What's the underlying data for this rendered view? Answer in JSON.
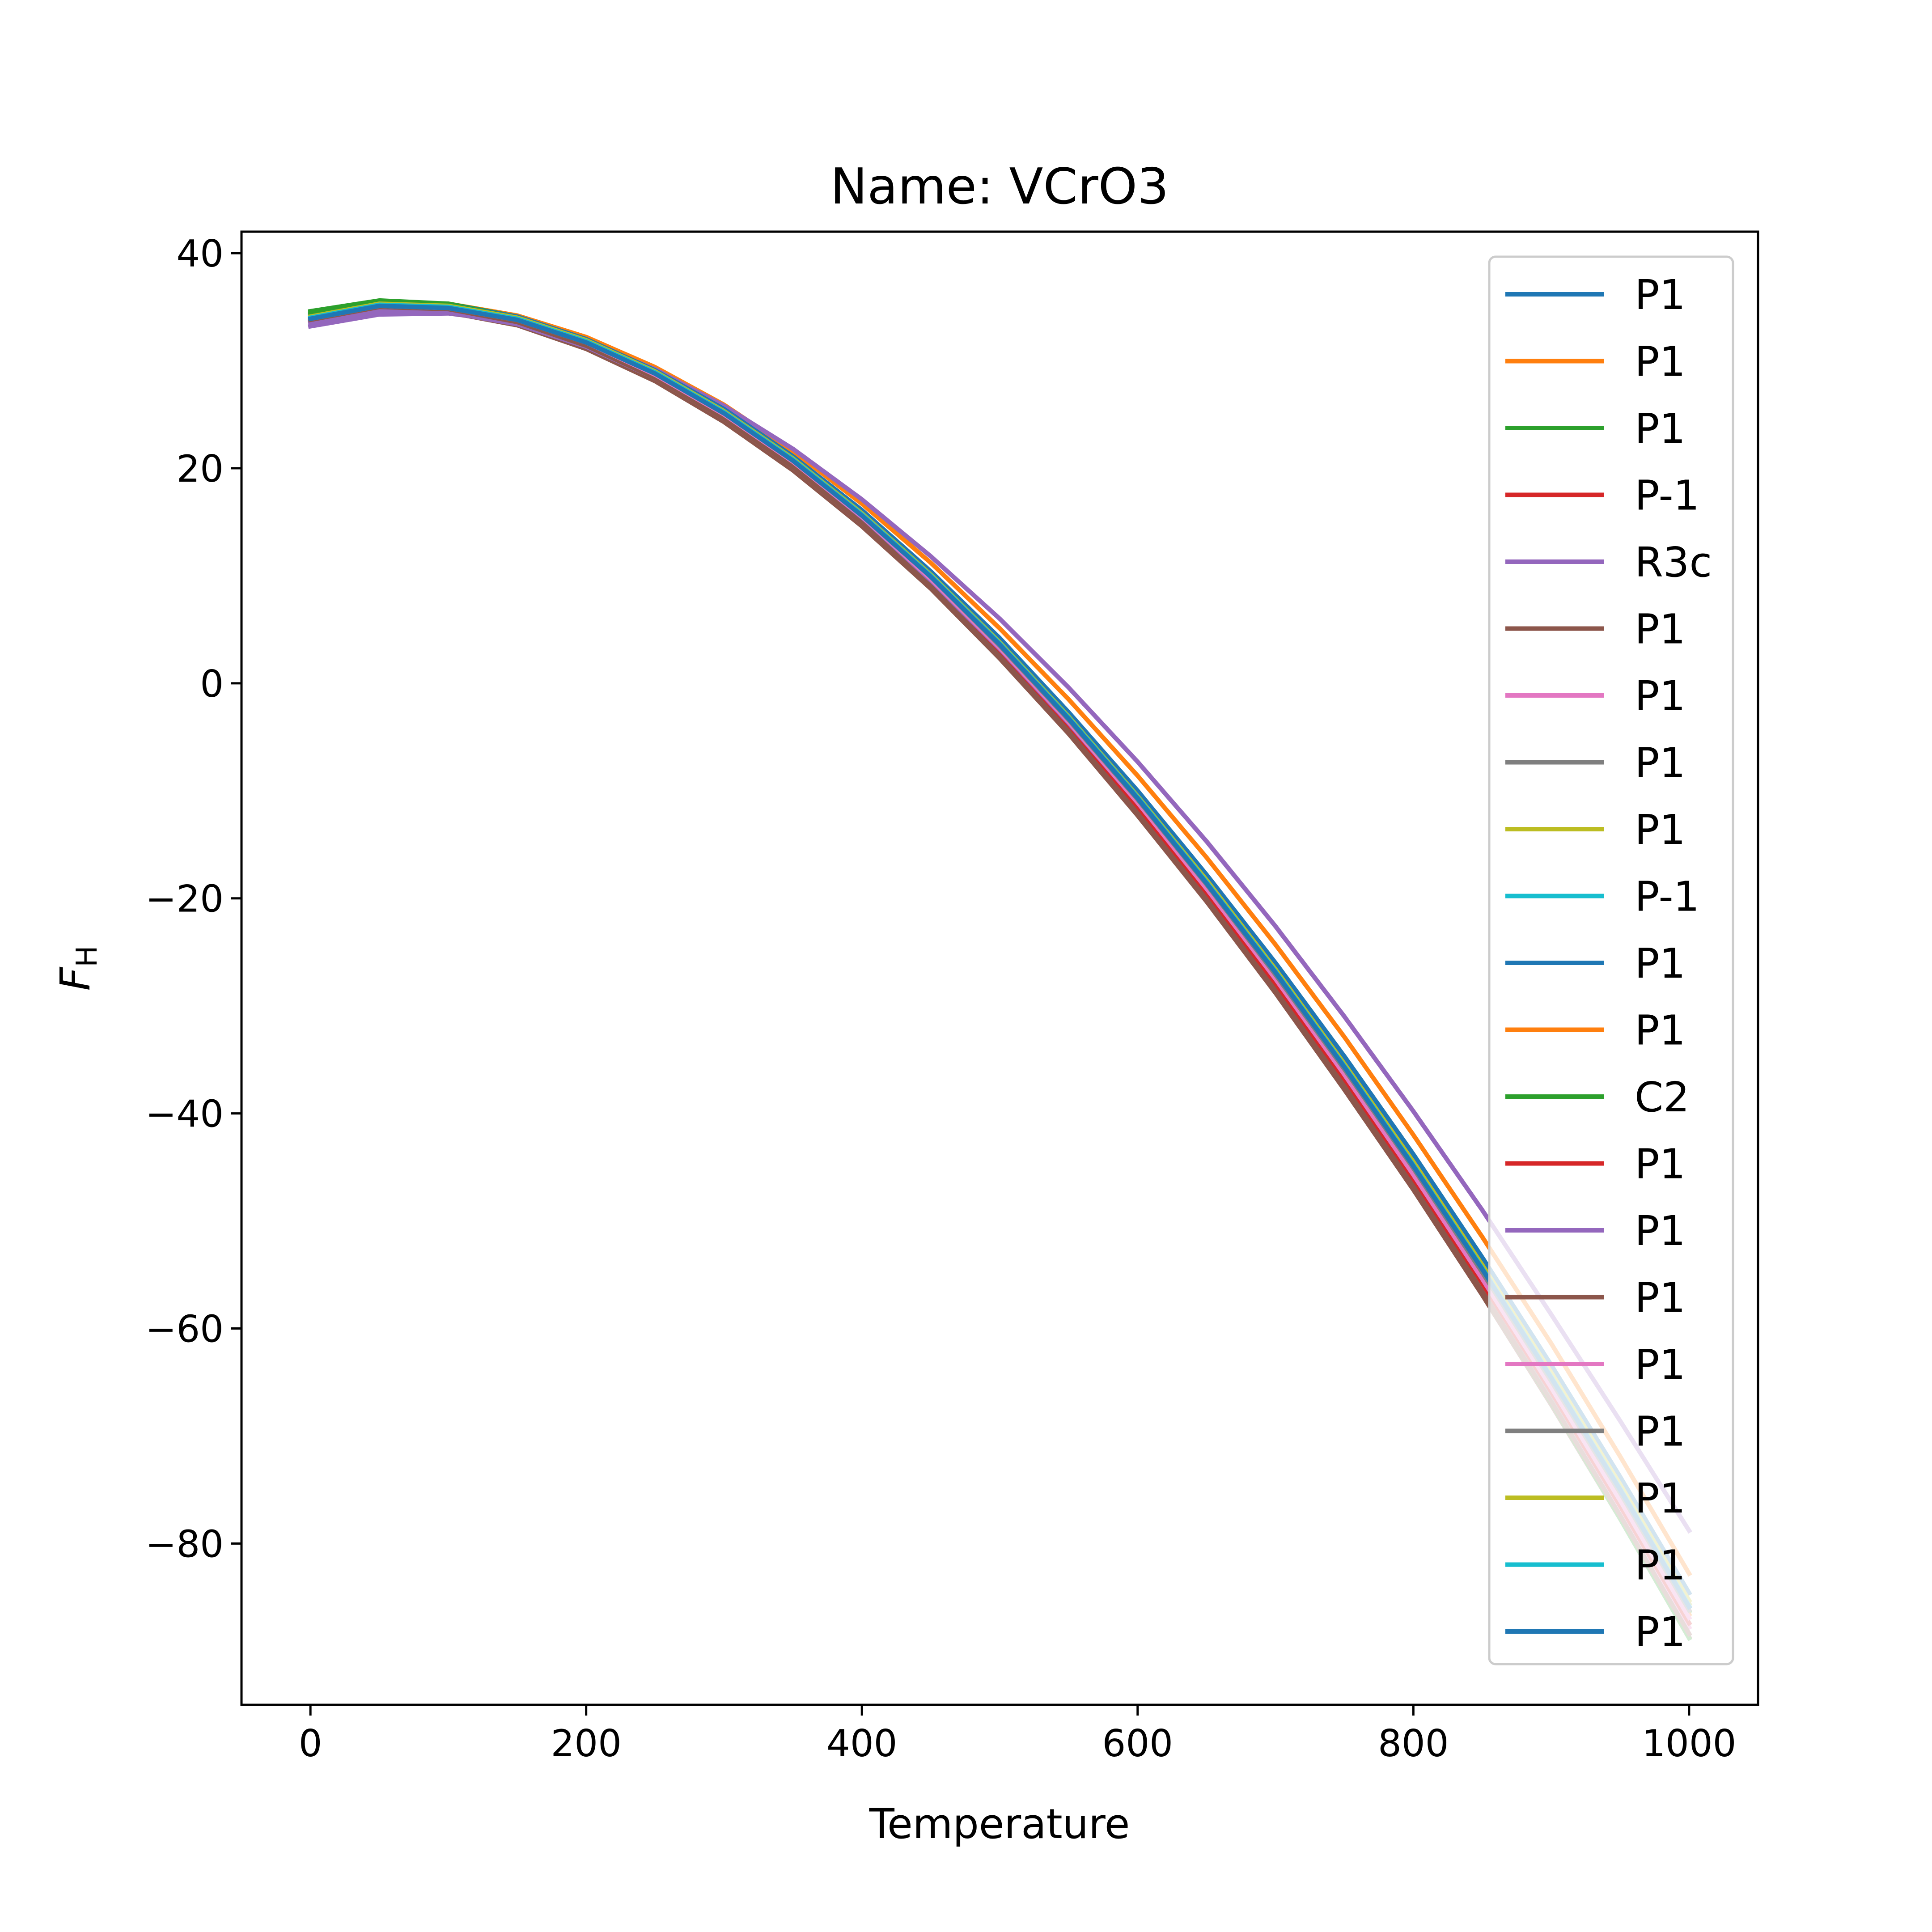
{
  "chart_data": {
    "type": "line",
    "title": "Name: VCrO3",
    "xlabel": "Temperature",
    "ylabel_main": "F",
    "ylabel_sub": "H",
    "xlim": [
      -50,
      1050
    ],
    "ylim": [
      -95,
      42
    ],
    "xticks": [
      0,
      200,
      400,
      600,
      800,
      1000
    ],
    "yticks": [
      40,
      20,
      0,
      -20,
      -40,
      -60,
      -80
    ],
    "xtick_labels": [
      "0",
      "200",
      "400",
      "600",
      "800",
      "1000"
    ],
    "ytick_labels": [
      "40",
      "20",
      "0",
      "−20",
      "−40",
      "−60",
      "−80"
    ],
    "grid": false,
    "legend_position": "right",
    "x": [
      0,
      50,
      100,
      150,
      200,
      250,
      300,
      350,
      400,
      450,
      500,
      550,
      600,
      650,
      700,
      750,
      800,
      850,
      900,
      950,
      1000
    ],
    "series": [
      {
        "name": "P1",
        "color": "#1f77b4",
        "values": [
          34.0,
          35.2,
          35.0,
          33.9,
          31.8,
          28.9,
          25.2,
          20.8,
          15.8,
          10.1,
          3.9,
          -2.9,
          -10.2,
          -18.0,
          -26.3,
          -35.0,
          -44.2,
          -53.9,
          -64.0,
          -74.6,
          -85.6
        ]
      },
      {
        "name": "P1",
        "color": "#ff7f0e",
        "values": [
          34.3,
          35.5,
          35.3,
          34.2,
          32.2,
          29.4,
          25.9,
          21.6,
          16.7,
          11.2,
          5.1,
          -1.5,
          -8.6,
          -16.2,
          -24.3,
          -32.9,
          -42.0,
          -51.5,
          -61.4,
          -71.9,
          -82.8
        ]
      },
      {
        "name": "P1",
        "color": "#2ca02c",
        "values": [
          34.6,
          35.6,
          35.3,
          34.1,
          32.0,
          29.1,
          25.5,
          21.1,
          16.0,
          10.3,
          4.0,
          -2.9,
          -10.3,
          -18.2,
          -26.6,
          -35.4,
          -44.7,
          -54.5,
          -64.7,
          -75.3,
          -86.3
        ]
      },
      {
        "name": "P-1",
        "color": "#d62728",
        "values": [
          33.8,
          35.0,
          34.8,
          33.7,
          31.6,
          28.6,
          24.9,
          20.4,
          15.3,
          9.5,
          3.1,
          -3.9,
          -11.4,
          -19.4,
          -27.9,
          -36.9,
          -46.3,
          -56.2,
          -66.5,
          -77.3,
          -88.4
        ]
      },
      {
        "name": "R3c",
        "color": "#9467bd",
        "values": [
          33.2,
          34.3,
          34.4,
          33.6,
          31.8,
          29.2,
          25.8,
          21.8,
          17.1,
          11.8,
          6.0,
          -0.4,
          -7.3,
          -14.7,
          -22.6,
          -31.0,
          -39.8,
          -49.0,
          -58.7,
          -68.6,
          -78.8
        ]
      },
      {
        "name": "P1",
        "color": "#8c564b",
        "values": [
          33.6,
          34.8,
          34.5,
          33.3,
          31.1,
          28.1,
          24.3,
          19.8,
          14.6,
          8.8,
          2.3,
          -4.7,
          -12.3,
          -20.3,
          -28.8,
          -37.8,
          -47.1,
          -56.9,
          -67.1,
          -77.7,
          -88.7
        ]
      },
      {
        "name": "P1",
        "color": "#e377c2",
        "values": [
          33.7,
          34.9,
          34.7,
          33.5,
          31.4,
          28.4,
          24.6,
          20.1,
          14.9,
          9.1,
          2.6,
          -4.4,
          -11.9,
          -19.9,
          -28.3,
          -37.2,
          -46.5,
          -56.2,
          -66.3,
          -76.9,
          -87.8
        ]
      },
      {
        "name": "P1",
        "color": "#7f7f7f",
        "values": [
          33.9,
          35.1,
          34.9,
          33.7,
          31.6,
          28.6,
          24.8,
          20.3,
          15.1,
          9.3,
          2.9,
          -4.1,
          -11.6,
          -19.6,
          -28.0,
          -36.9,
          -46.2,
          -55.9,
          -66.0,
          -76.5,
          -87.4
        ]
      },
      {
        "name": "P1",
        "color": "#bcbd22",
        "values": [
          34.1,
          35.3,
          35.1,
          34.0,
          31.9,
          29.0,
          25.3,
          20.9,
          15.8,
          10.1,
          3.8,
          -3.1,
          -10.5,
          -18.4,
          -26.7,
          -35.5,
          -44.7,
          -54.3,
          -64.3,
          -74.8,
          -85.6
        ]
      },
      {
        "name": "P-1",
        "color": "#17becf",
        "values": [
          33.9,
          35.1,
          34.9,
          33.8,
          31.7,
          28.8,
          25.1,
          20.7,
          15.6,
          9.9,
          3.6,
          -3.3,
          -10.7,
          -18.6,
          -26.9,
          -35.7,
          -44.9,
          -54.5,
          -64.5,
          -75.0,
          -85.8
        ]
      },
      {
        "name": "P1",
        "color": "#1f77b4",
        "values": [
          34.2,
          35.4,
          35.2,
          34.1,
          32.0,
          29.1,
          25.5,
          21.1,
          16.1,
          10.4,
          4.2,
          -2.7,
          -10.0,
          -17.8,
          -26.0,
          -34.7,
          -43.8,
          -53.4,
          -63.4,
          -73.8,
          -84.6
        ]
      },
      {
        "name": "P1",
        "color": "#ff7f0e",
        "values": [
          33.8,
          35.0,
          34.8,
          33.7,
          31.6,
          28.6,
          24.9,
          20.5,
          15.4,
          9.6,
          3.3,
          -3.6,
          -11.1,
          -19.0,
          -27.4,
          -36.2,
          -45.4,
          -55.1,
          -65.2,
          -75.7,
          -86.6
        ]
      },
      {
        "name": "C2",
        "color": "#2ca02c",
        "values": [
          34.4,
          35.5,
          35.2,
          34.0,
          31.8,
          28.8,
          25.0,
          20.5,
          15.3,
          9.4,
          2.9,
          -4.1,
          -11.7,
          -19.8,
          -28.3,
          -37.3,
          -46.7,
          -56.6,
          -66.9,
          -77.7,
          -88.8
        ]
      },
      {
        "name": "P1",
        "color": "#d62728",
        "values": [
          33.7,
          34.9,
          34.7,
          33.6,
          31.5,
          28.5,
          24.8,
          20.3,
          15.2,
          9.4,
          3.0,
          -4.0,
          -11.5,
          -19.5,
          -27.9,
          -36.8,
          -46.1,
          -55.8,
          -65.9,
          -76.5,
          -87.4
        ]
      },
      {
        "name": "P1",
        "color": "#9467bd",
        "values": [
          33.5,
          34.6,
          34.5,
          33.4,
          31.3,
          28.4,
          24.7,
          20.3,
          15.2,
          9.5,
          3.2,
          -3.7,
          -11.1,
          -19.0,
          -27.3,
          -36.1,
          -45.3,
          -54.9,
          -64.9,
          -75.4,
          -86.2
        ]
      },
      {
        "name": "P1",
        "color": "#8c564b",
        "values": [
          33.8,
          35.0,
          34.8,
          33.6,
          31.4,
          28.4,
          24.6,
          20.1,
          14.9,
          9.0,
          2.5,
          -4.5,
          -12.1,
          -20.1,
          -28.6,
          -37.5,
          -46.8,
          -56.6,
          -66.8,
          -77.4,
          -88.4
        ]
      },
      {
        "name": "P1",
        "color": "#e377c2",
        "values": [
          33.9,
          35.1,
          34.9,
          33.8,
          31.7,
          28.7,
          25.0,
          20.6,
          15.5,
          9.7,
          3.3,
          -3.6,
          -11.1,
          -19.1,
          -27.5,
          -36.4,
          -45.7,
          -55.4,
          -65.5,
          -76.0,
          -86.9
        ]
      },
      {
        "name": "P1",
        "color": "#7f7f7f",
        "values": [
          34.0,
          35.2,
          35.0,
          33.9,
          31.8,
          28.8,
          25.1,
          20.7,
          15.6,
          9.9,
          3.5,
          -3.4,
          -10.8,
          -18.7,
          -27.1,
          -35.9,
          -45.1,
          -54.8,
          -64.9,
          -75.3,
          -86.2
        ]
      },
      {
        "name": "P1",
        "color": "#bcbd22",
        "values": [
          34.1,
          35.3,
          35.1,
          34.0,
          31.9,
          29.0,
          25.3,
          20.9,
          15.8,
          10.1,
          3.8,
          -3.1,
          -10.5,
          -18.3,
          -26.6,
          -35.4,
          -44.5,
          -54.1,
          -64.1,
          -74.5,
          -85.3
        ]
      },
      {
        "name": "P1",
        "color": "#17becf",
        "values": [
          34.0,
          35.2,
          35.0,
          33.9,
          31.8,
          28.9,
          25.2,
          20.8,
          15.7,
          10.0,
          3.7,
          -3.2,
          -10.6,
          -18.5,
          -26.8,
          -35.6,
          -44.8,
          -54.4,
          -64.5,
          -74.9,
          -85.8
        ]
      },
      {
        "name": "P1",
        "color": "#1f77b4",
        "values": [
          33.9,
          35.1,
          34.9,
          33.8,
          31.7,
          28.8,
          25.1,
          20.7,
          15.6,
          9.9,
          3.6,
          -3.3,
          -10.7,
          -18.6,
          -26.9,
          -35.7,
          -44.9,
          -54.5,
          -64.6,
          -75.0,
          -85.9
        ]
      }
    ]
  }
}
